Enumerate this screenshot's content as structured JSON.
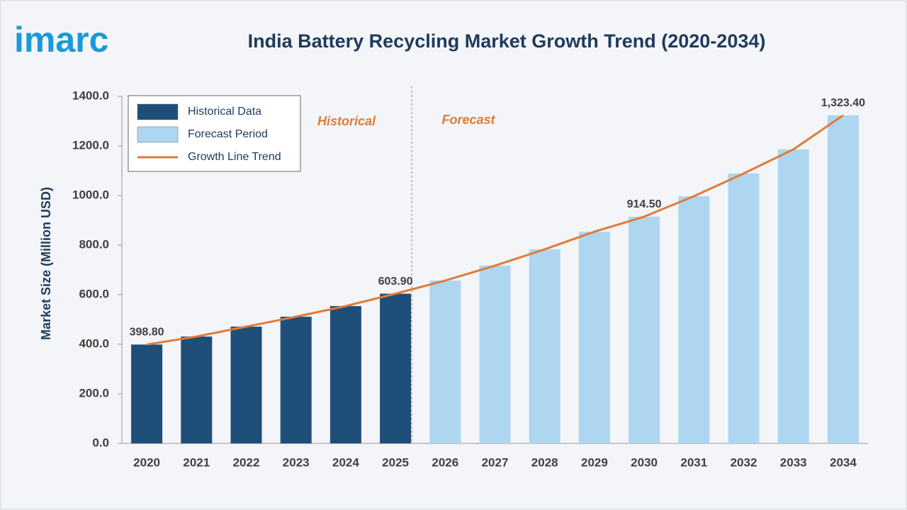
{
  "logo": "imarc",
  "chart_data": {
    "type": "bar",
    "title": "India Battery Recycling Market Growth Trend (2020-2034)",
    "y_label": "Market Size (Million USD)",
    "annotations": [
      "Historical",
      "Forecast"
    ],
    "categories": [
      "2020",
      "2021",
      "2022",
      "2023",
      "2024",
      "2025",
      "2026",
      "2027",
      "2028",
      "2029",
      "2030",
      "2031",
      "2032",
      "2033",
      "2034"
    ],
    "series": [
      {
        "name": "Historical Data",
        "type": "bar",
        "color": "#1f4e79",
        "values": [
          398.8,
          431,
          471,
          511,
          554,
          603.9,
          null,
          null,
          null,
          null,
          null,
          null,
          null,
          null,
          null
        ],
        "value_labels": [
          "398.80",
          null,
          null,
          null,
          null,
          "603.90",
          null,
          null,
          null,
          null,
          null,
          null,
          null,
          null,
          null
        ]
      },
      {
        "name": "Forecast Period",
        "type": "bar",
        "color": "#aed6f0",
        "values": [
          null,
          null,
          null,
          null,
          null,
          null,
          657,
          717,
          783,
          854,
          914.5,
          997,
          1089,
          1186,
          1323.4
        ],
        "value_labels": [
          null,
          null,
          null,
          null,
          null,
          null,
          null,
          null,
          null,
          null,
          "914.50",
          null,
          null,
          null,
          "1,323.40"
        ]
      },
      {
        "name": "Growth Line Trend",
        "type": "line",
        "color": "#e07b39",
        "values": [
          398.8,
          431,
          471,
          511,
          554,
          603.9,
          657,
          717,
          783,
          854,
          914.5,
          997,
          1089,
          1186,
          1323.4
        ]
      }
    ],
    "ylim": [
      0,
      1400
    ],
    "yticks": [
      {
        "value": 0,
        "label": "0.0"
      },
      {
        "value": 200,
        "label": "200.0"
      },
      {
        "value": 400,
        "label": "400.0"
      },
      {
        "value": 600,
        "label": "600.0"
      },
      {
        "value": 800,
        "label": "800.0"
      },
      {
        "value": 1000,
        "label": "1000.0"
      },
      {
        "value": 1200,
        "label": "1200.0"
      },
      {
        "value": 1400,
        "label": "1400.0"
      }
    ],
    "grid": false,
    "legend": "top-left"
  }
}
